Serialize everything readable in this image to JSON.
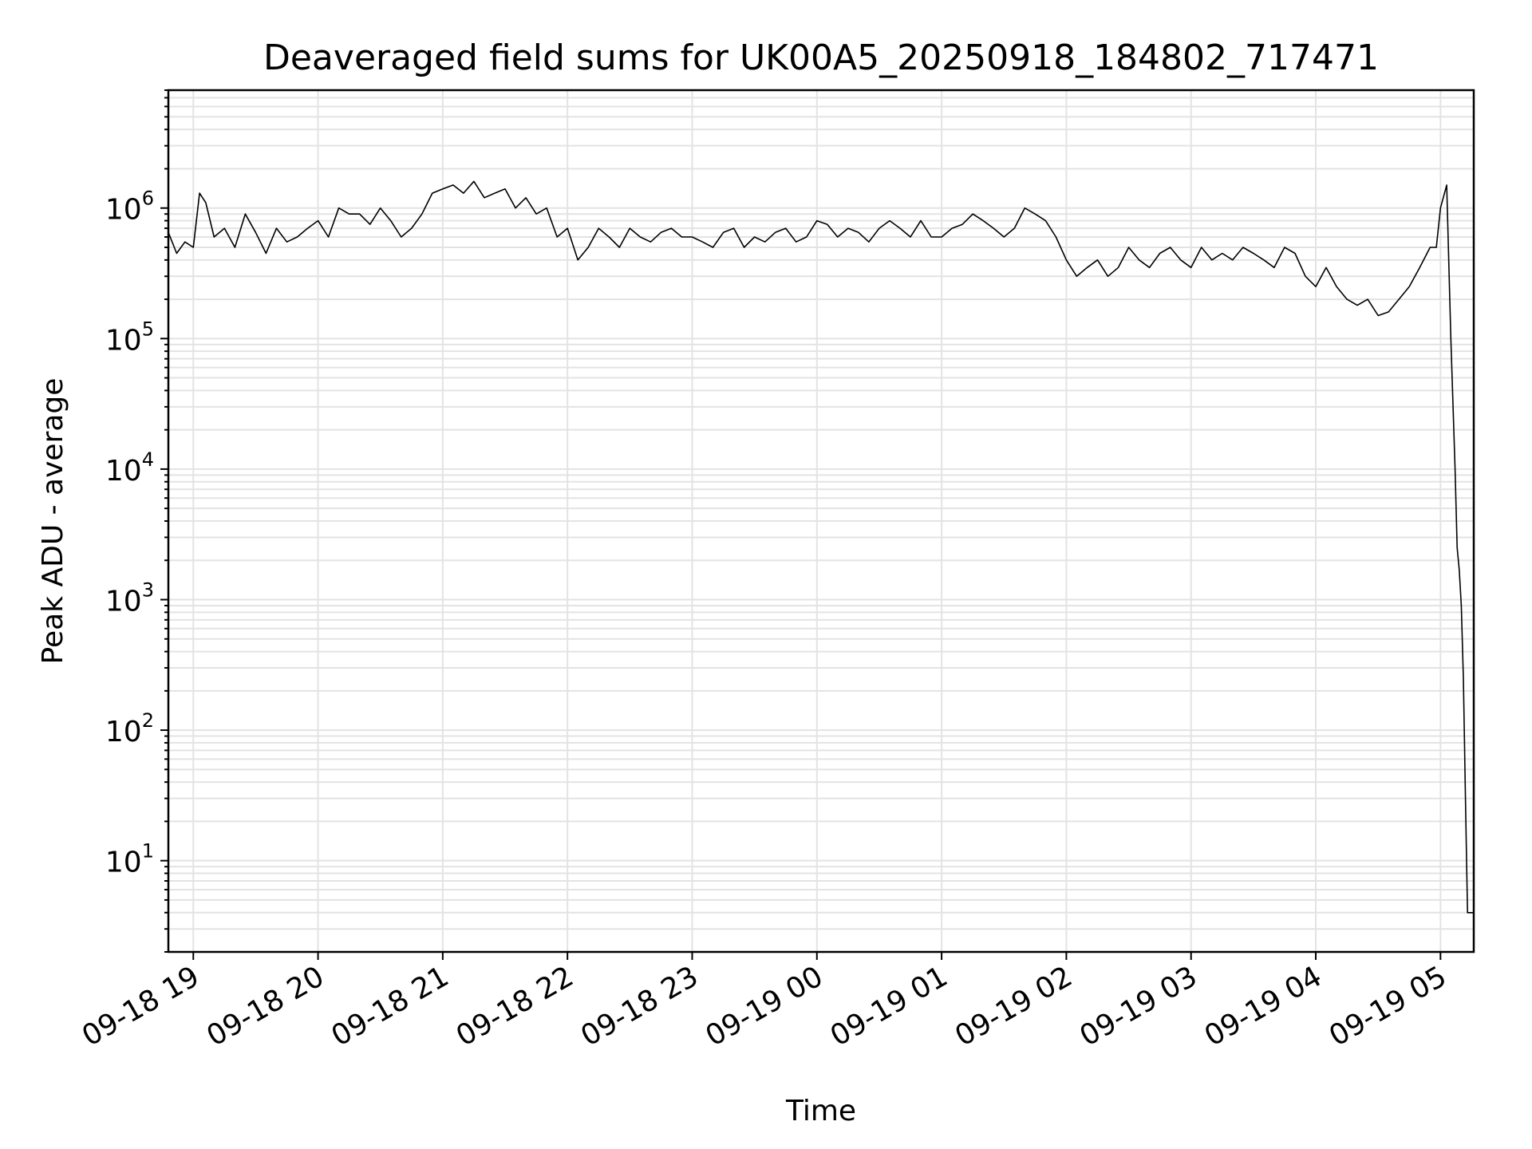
{
  "chart_data": {
    "type": "line",
    "title": "Deaveraged field sums for UK00A5_20250918_184802_717471",
    "xlabel": "Time",
    "ylabel": "Peak ADU - average",
    "yscale": "log",
    "ylim": [
      2,
      8000000
    ],
    "xlim": [
      "2025-09-18T18:48:00",
      "2025-09-19T05:16:00"
    ],
    "grid": true,
    "line_color": "#000000",
    "x_ticks": [
      {
        "time": "2025-09-18T19:00:00",
        "label": "09-18 19"
      },
      {
        "time": "2025-09-18T20:00:00",
        "label": "09-18 20"
      },
      {
        "time": "2025-09-18T21:00:00",
        "label": "09-18 21"
      },
      {
        "time": "2025-09-18T22:00:00",
        "label": "09-18 22"
      },
      {
        "time": "2025-09-18T23:00:00",
        "label": "09-18 23"
      },
      {
        "time": "2025-09-19T00:00:00",
        "label": "09-19 00"
      },
      {
        "time": "2025-09-19T01:00:00",
        "label": "09-19 01"
      },
      {
        "time": "2025-09-19T02:00:00",
        "label": "09-19 02"
      },
      {
        "time": "2025-09-19T03:00:00",
        "label": "09-19 03"
      },
      {
        "time": "2025-09-19T04:00:00",
        "label": "09-19 04"
      },
      {
        "time": "2025-09-19T05:00:00",
        "label": "09-19 05"
      }
    ],
    "y_ticks": [
      {
        "value": 10,
        "base": "10",
        "exp": "1"
      },
      {
        "value": 100,
        "base": "10",
        "exp": "2"
      },
      {
        "value": 1000,
        "base": "10",
        "exp": "3"
      },
      {
        "value": 10000,
        "base": "10",
        "exp": "4"
      },
      {
        "value": 100000,
        "base": "10",
        "exp": "5"
      },
      {
        "value": 1000000,
        "base": "10",
        "exp": "6"
      }
    ],
    "series": [
      {
        "x": [
          "2025-09-18T18:48:00",
          "2025-09-18T18:52:00",
          "2025-09-18T18:56:00",
          "2025-09-18T19:00:00",
          "2025-09-18T19:03:00",
          "2025-09-18T19:06:00",
          "2025-09-18T19:10:00",
          "2025-09-18T19:15:00",
          "2025-09-18T19:20:00",
          "2025-09-18T19:25:00",
          "2025-09-18T19:30:00",
          "2025-09-18T19:35:00",
          "2025-09-18T19:40:00",
          "2025-09-18T19:45:00",
          "2025-09-18T19:50:00",
          "2025-09-18T19:55:00",
          "2025-09-18T20:00:00",
          "2025-09-18T20:05:00",
          "2025-09-18T20:10:00",
          "2025-09-18T20:15:00",
          "2025-09-18T20:20:00",
          "2025-09-18T20:25:00",
          "2025-09-18T20:30:00",
          "2025-09-18T20:35:00",
          "2025-09-18T20:40:00",
          "2025-09-18T20:45:00",
          "2025-09-18T20:50:00",
          "2025-09-18T20:55:00",
          "2025-09-18T21:00:00",
          "2025-09-18T21:05:00",
          "2025-09-18T21:10:00",
          "2025-09-18T21:15:00",
          "2025-09-18T21:20:00",
          "2025-09-18T21:25:00",
          "2025-09-18T21:30:00",
          "2025-09-18T21:35:00",
          "2025-09-18T21:40:00",
          "2025-09-18T21:45:00",
          "2025-09-18T21:50:00",
          "2025-09-18T21:55:00",
          "2025-09-18T22:00:00",
          "2025-09-18T22:05:00",
          "2025-09-18T22:10:00",
          "2025-09-18T22:15:00",
          "2025-09-18T22:20:00",
          "2025-09-18T22:25:00",
          "2025-09-18T22:30:00",
          "2025-09-18T22:35:00",
          "2025-09-18T22:40:00",
          "2025-09-18T22:45:00",
          "2025-09-18T22:50:00",
          "2025-09-18T22:55:00",
          "2025-09-18T23:00:00",
          "2025-09-18T23:05:00",
          "2025-09-18T23:10:00",
          "2025-09-18T23:15:00",
          "2025-09-18T23:20:00",
          "2025-09-18T23:25:00",
          "2025-09-18T23:30:00",
          "2025-09-18T23:35:00",
          "2025-09-18T23:40:00",
          "2025-09-18T23:45:00",
          "2025-09-18T23:50:00",
          "2025-09-18T23:55:00",
          "2025-09-19T00:00:00",
          "2025-09-19T00:05:00",
          "2025-09-19T00:10:00",
          "2025-09-19T00:15:00",
          "2025-09-19T00:20:00",
          "2025-09-19T00:25:00",
          "2025-09-19T00:30:00",
          "2025-09-19T00:35:00",
          "2025-09-19T00:40:00",
          "2025-09-19T00:45:00",
          "2025-09-19T00:50:00",
          "2025-09-19T00:55:00",
          "2025-09-19T01:00:00",
          "2025-09-19T01:05:00",
          "2025-09-19T01:10:00",
          "2025-09-19T01:15:00",
          "2025-09-19T01:20:00",
          "2025-09-19T01:25:00",
          "2025-09-19T01:30:00",
          "2025-09-19T01:35:00",
          "2025-09-19T01:40:00",
          "2025-09-19T01:45:00",
          "2025-09-19T01:50:00",
          "2025-09-19T01:55:00",
          "2025-09-19T02:00:00",
          "2025-09-19T02:05:00",
          "2025-09-19T02:10:00",
          "2025-09-19T02:15:00",
          "2025-09-19T02:20:00",
          "2025-09-19T02:25:00",
          "2025-09-19T02:30:00",
          "2025-09-19T02:35:00",
          "2025-09-19T02:40:00",
          "2025-09-19T02:45:00",
          "2025-09-19T02:50:00",
          "2025-09-19T02:55:00",
          "2025-09-19T03:00:00",
          "2025-09-19T03:05:00",
          "2025-09-19T03:10:00",
          "2025-09-19T03:15:00",
          "2025-09-19T03:20:00",
          "2025-09-19T03:25:00",
          "2025-09-19T03:30:00",
          "2025-09-19T03:35:00",
          "2025-09-19T03:40:00",
          "2025-09-19T03:45:00",
          "2025-09-19T03:50:00",
          "2025-09-19T03:55:00",
          "2025-09-19T04:00:00",
          "2025-09-19T04:05:00",
          "2025-09-19T04:10:00",
          "2025-09-19T04:15:00",
          "2025-09-19T04:20:00",
          "2025-09-19T04:25:00",
          "2025-09-19T04:30:00",
          "2025-09-19T04:35:00",
          "2025-09-19T04:40:00",
          "2025-09-19T04:45:00",
          "2025-09-19T04:50:00",
          "2025-09-19T04:55:00",
          "2025-09-19T04:58:00",
          "2025-09-19T05:00:00",
          "2025-09-19T05:03:00",
          "2025-09-19T05:05:00",
          "2025-09-19T05:07:00",
          "2025-09-19T05:08:00",
          "2025-09-19T05:09:00",
          "2025-09-19T05:10:00",
          "2025-09-19T05:11:00",
          "2025-09-19T05:12:00",
          "2025-09-19T05:13:00",
          "2025-09-19T05:14:00",
          "2025-09-19T05:16:00"
        ],
        "values": [
          650000,
          450000,
          550000,
          500000,
          1300000,
          1100000,
          600000,
          700000,
          500000,
          900000,
          650000,
          450000,
          700000,
          550000,
          600000,
          700000,
          800000,
          600000,
          1000000,
          900000,
          900000,
          750000,
          1000000,
          800000,
          600000,
          700000,
          900000,
          1300000,
          1400000,
          1500000,
          1300000,
          1600000,
          1200000,
          1300000,
          1400000,
          1000000,
          1200000,
          900000,
          1000000,
          600000,
          700000,
          400000,
          500000,
          700000,
          600000,
          500000,
          700000,
          600000,
          550000,
          650000,
          700000,
          600000,
          600000,
          550000,
          500000,
          650000,
          700000,
          500000,
          600000,
          550000,
          650000,
          700000,
          550000,
          600000,
          800000,
          750000,
          600000,
          700000,
          650000,
          550000,
          700000,
          800000,
          700000,
          600000,
          800000,
          600000,
          600000,
          700000,
          750000,
          900000,
          800000,
          700000,
          600000,
          700000,
          1000000,
          900000,
          800000,
          600000,
          400000,
          300000,
          350000,
          400000,
          300000,
          350000,
          500000,
          400000,
          350000,
          450000,
          500000,
          400000,
          350000,
          500000,
          400000,
          450000,
          400000,
          500000,
          450000,
          400000,
          350000,
          500000,
          450000,
          300000,
          250000,
          350000,
          250000,
          200000,
          180000,
          200000,
          150000,
          160000,
          200000,
          250000,
          350000,
          500000,
          500000,
          1000000,
          1500000,
          100000,
          10000,
          2500,
          1700,
          900,
          250,
          30,
          4,
          4,
          4
        ]
      }
    ]
  }
}
